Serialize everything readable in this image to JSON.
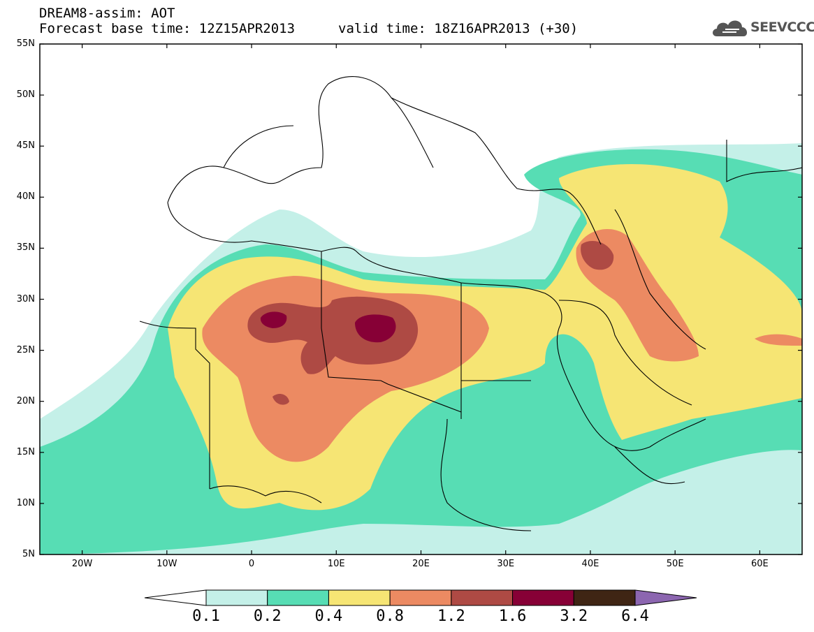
{
  "header": {
    "title": "DREAM8-assim: AOT",
    "base_time": "Forecast base time: 12Z15APR2013",
    "valid_time": "valid time: 18Z16APR2013 (+30)",
    "logo_text": "SEEVCCC"
  },
  "axes": {
    "lat_labels": [
      "55N",
      "50N",
      "45N",
      "40N",
      "35N",
      "30N",
      "25N",
      "20N",
      "15N",
      "10N",
      "5N"
    ],
    "lon_labels": [
      "20W",
      "10W",
      "0",
      "10E",
      "20E",
      "30E",
      "40E",
      "50E",
      "60E"
    ],
    "lat_range": [
      5,
      55
    ],
    "lon_range": [
      -25,
      65
    ]
  },
  "colorbar": {
    "labels": [
      "0.1",
      "0.2",
      "0.4",
      "0.8",
      "1.2",
      "1.6",
      "3.2",
      "6.4"
    ],
    "colors": [
      "#ffffff",
      "#c4f0e8",
      "#57ddb4",
      "#f6e574",
      "#ec8a62",
      "#ae4a44",
      "#870036",
      "#3f2514",
      "#8c66b0"
    ]
  },
  "colors": {
    "c01": "#c4f0e8",
    "c02": "#57ddb4",
    "c04": "#f6e574",
    "c08": "#ec8a62",
    "c12": "#ae4a44",
    "c16": "#870036"
  }
}
